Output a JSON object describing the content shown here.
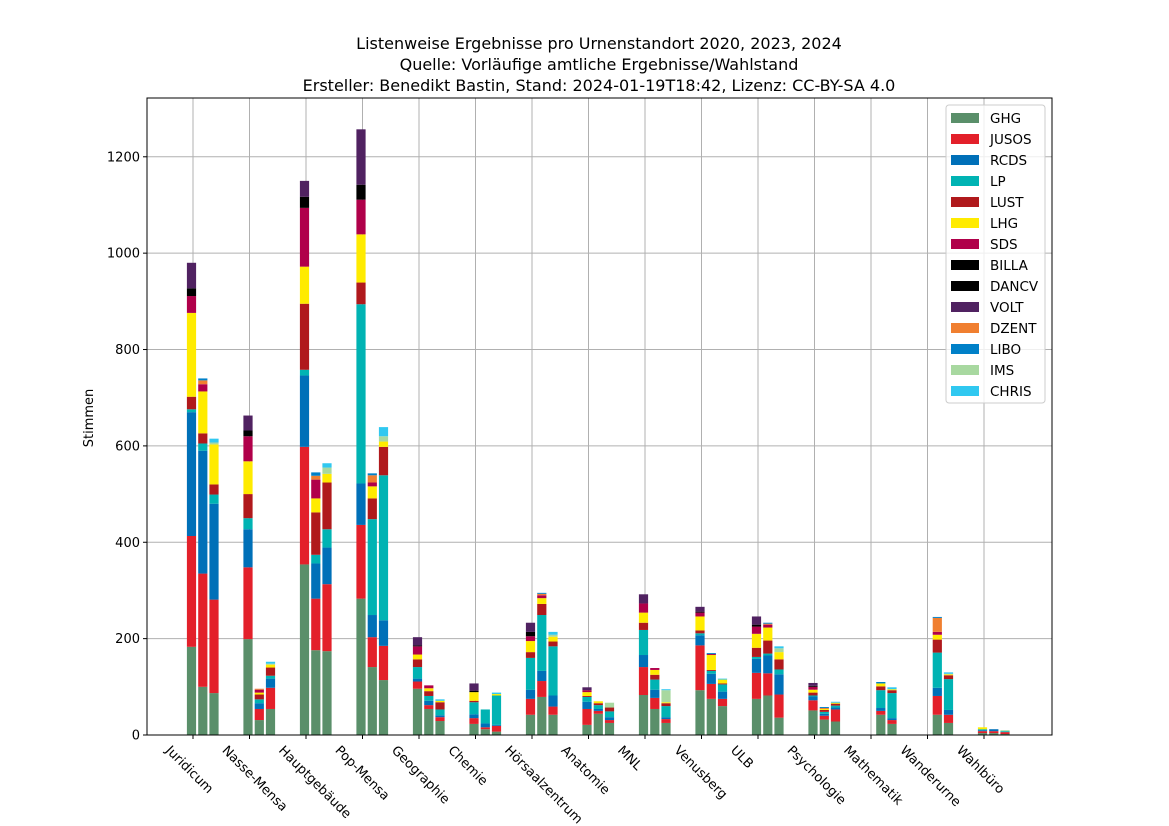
{
  "chart_data": {
    "type": "bar",
    "stacked": true,
    "title": [
      "Listenweise Ergebnisse pro Urnenstandort 2020, 2023, 2024",
      "Quelle: Vorläufige amtliche Ergebnisse/Wahlstand",
      "Ersteller: Benedikt Bastin, Stand: 2024-01-19T18:42, Lizenz: CC-BY-SA 4.0"
    ],
    "xlabel": "",
    "ylabel": "Stimmen",
    "ylim": [
      0,
      1322
    ],
    "yticks": [
      0,
      200,
      400,
      600,
      800,
      1000,
      1200
    ],
    "grid": true,
    "legend_position": "top-right",
    "categories": [
      "Juridicum",
      "Nasse-Mensa",
      "Hauptgebäude",
      "Pop-Mensa",
      "Geographie",
      "Chemie",
      "Hörsaalzentrum",
      "Anatomie",
      "MNL",
      "Venusberg",
      "ULB",
      "Psychologie",
      "Mathematik",
      "Wanderurne",
      "Wahlbüro"
    ],
    "series": [
      {
        "name": "GHG",
        "color": "#5a8f6a"
      },
      {
        "name": "JUSOS",
        "color": "#e3202a"
      },
      {
        "name": "RCDS",
        "color": "#0070b8"
      },
      {
        "name": "LP",
        "color": "#00b3b3"
      },
      {
        "name": "LUST",
        "color": "#b0191c"
      },
      {
        "name": "LHG",
        "color": "#ffeb00"
      },
      {
        "name": "SDS",
        "color": "#b0004a"
      },
      {
        "name": "BILLA",
        "color": "#000000"
      },
      {
        "name": "DANCV",
        "color": "#000000"
      },
      {
        "name": "VOLT",
        "color": "#502261"
      },
      {
        "name": "DZENT",
        "color": "#f07f30"
      },
      {
        "name": "LIBO",
        "color": "#0080c8"
      },
      {
        "name": "IMS",
        "color": "#a8d8a0"
      },
      {
        "name": "CHRIS",
        "color": "#30c8f0"
      }
    ],
    "stacks_per_category_by_year_2020_2023_2024": [
      [
        [
          183,
          230,
          257,
          6,
          26,
          174,
          35,
          16,
          0,
          53,
          0,
          0,
          0,
          0
        ],
        [
          100,
          235,
          255,
          15,
          21,
          87,
          15,
          0,
          0,
          0,
          8,
          4,
          0,
          0
        ],
        [
          87,
          194,
          199,
          19,
          21,
          83,
          0,
          0,
          0,
          0,
          0,
          0,
          4,
          8
        ]
      ],
      [
        [
          199,
          149,
          79,
          23,
          50,
          68,
          52,
          12,
          0,
          31,
          0,
          0,
          0,
          0
        ],
        [
          31,
          23,
          12,
          8,
          10,
          4,
          6,
          0,
          0,
          0,
          2,
          0,
          0,
          0
        ],
        [
          54,
          44,
          19,
          6,
          17,
          6,
          0,
          0,
          0,
          0,
          0,
          0,
          2,
          4
        ]
      ],
      [
        [
          354,
          244,
          148,
          12,
          137,
          77,
          122,
          23,
          0,
          33,
          0,
          0,
          0,
          0
        ],
        [
          176,
          107,
          73,
          18,
          88,
          29,
          39,
          0,
          0,
          0,
          8,
          7,
          0,
          0
        ],
        [
          174,
          139,
          76,
          38,
          97,
          18,
          0,
          0,
          0,
          0,
          0,
          0,
          13,
          9
        ]
      ],
      [
        [
          283,
          153,
          86,
          372,
          45,
          100,
          72,
          31,
          0,
          115,
          0,
          0,
          0,
          0
        ],
        [
          141,
          62,
          46,
          199,
          43,
          25,
          8,
          0,
          0,
          0,
          15,
          4,
          0,
          0
        ],
        [
          114,
          71,
          53,
          301,
          59,
          11,
          0,
          0,
          0,
          0,
          0,
          0,
          11,
          19
        ]
      ],
      [
        [
          96,
          15,
          6,
          24,
          16,
          10,
          17,
          2,
          0,
          17,
          0,
          0,
          0,
          0
        ],
        [
          54,
          8,
          9,
          10,
          10,
          6,
          6,
          0,
          0,
          0,
          0,
          0,
          0,
          0
        ],
        [
          29,
          8,
          4,
          12,
          15,
          3,
          0,
          0,
          0,
          0,
          0,
          0,
          0,
          3
        ]
      ],
      [
        [
          23,
          12,
          8,
          25,
          3,
          18,
          0,
          3,
          0,
          15,
          0,
          0,
          0,
          0
        ],
        [
          12,
          4,
          8,
          29,
          0,
          0,
          0,
          0,
          0,
          0,
          0,
          0,
          0,
          0
        ],
        [
          7,
          12,
          2,
          61,
          0,
          3,
          0,
          0,
          0,
          0,
          0,
          0,
          0,
          3
        ]
      ],
      [
        [
          42,
          33,
          19,
          66,
          12,
          23,
          10,
          9,
          0,
          19,
          0,
          0,
          0,
          0
        ],
        [
          79,
          33,
          21,
          116,
          23,
          12,
          6,
          0,
          0,
          0,
          3,
          2,
          0,
          0
        ],
        [
          42,
          17,
          23,
          102,
          10,
          10,
          0,
          0,
          0,
          0,
          0,
          0,
          4,
          6
        ]
      ],
      [
        [
          21,
          33,
          15,
          10,
          2,
          8,
          4,
          0,
          0,
          6,
          0,
          0,
          0,
          0
        ],
        [
          44,
          6,
          4,
          8,
          4,
          4,
          0,
          0,
          0,
          0,
          0,
          0,
          0,
          0
        ],
        [
          25,
          6,
          6,
          12,
          8,
          0,
          0,
          0,
          0,
          0,
          0,
          0,
          10,
          0
        ]
      ],
      [
        [
          83,
          58,
          25,
          52,
          15,
          21,
          19,
          0,
          0,
          19,
          0,
          0,
          0,
          0
        ],
        [
          54,
          23,
          17,
          21,
          10,
          10,
          4,
          0,
          0,
          0,
          0,
          0,
          0,
          0
        ],
        [
          25,
          8,
          4,
          23,
          6,
          2,
          0,
          0,
          0,
          0,
          0,
          0,
          25,
          2
        ]
      ],
      [
        [
          93,
          93,
          21,
          4,
          6,
          29,
          8,
          2,
          0,
          10,
          0,
          0,
          0,
          0
        ],
        [
          75,
          31,
          21,
          6,
          2,
          31,
          2,
          0,
          0,
          0,
          0,
          2,
          0,
          0
        ],
        [
          60,
          15,
          15,
          15,
          2,
          8,
          0,
          0,
          0,
          0,
          0,
          0,
          0,
          2
        ]
      ],
      [
        [
          75,
          54,
          29,
          4,
          19,
          29,
          15,
          4,
          0,
          17,
          0,
          0,
          0,
          0
        ],
        [
          82,
          46,
          37,
          4,
          27,
          27,
          6,
          0,
          0,
          0,
          2,
          2,
          0,
          0
        ],
        [
          36,
          48,
          42,
          10,
          21,
          15,
          0,
          0,
          0,
          0,
          0,
          0,
          8,
          4
        ]
      ],
      [
        [
          51,
          21,
          8,
          2,
          6,
          6,
          6,
          2,
          0,
          6,
          0,
          0,
          0,
          0
        ],
        [
          32,
          8,
          4,
          4,
          4,
          2,
          0,
          0,
          0,
          0,
          2,
          2,
          0,
          0
        ],
        [
          28,
          25,
          4,
          4,
          4,
          2,
          0,
          0,
          0,
          0,
          0,
          0,
          0,
          2
        ]
      ],
      [
        [
          0,
          0,
          0,
          0,
          0,
          0,
          0,
          0,
          0,
          0,
          0,
          0,
          0,
          0
        ],
        [
          42,
          8,
          6,
          37,
          8,
          6,
          0,
          0,
          0,
          0,
          0,
          3,
          0,
          0
        ],
        [
          23,
          8,
          4,
          52,
          6,
          2,
          0,
          0,
          0,
          0,
          0,
          0,
          0,
          4
        ]
      ],
      [
        [
          0,
          0,
          0,
          0,
          0,
          0,
          0,
          0,
          0,
          0,
          0,
          0,
          0,
          0
        ],
        [
          42,
          39,
          17,
          73,
          27,
          10,
          6,
          0,
          0,
          0,
          29,
          2,
          0,
          0
        ],
        [
          25,
          17,
          10,
          64,
          8,
          2,
          0,
          0,
          0,
          0,
          0,
          0,
          1,
          3
        ]
      ],
      [
        [
          4,
          4,
          2,
          2,
          0,
          4,
          0,
          0,
          0,
          0,
          0,
          0,
          0,
          0
        ],
        [
          4,
          4,
          4,
          0,
          0,
          0,
          0,
          0,
          0,
          0,
          0,
          0,
          0,
          0
        ],
        [
          2,
          4,
          0,
          2,
          0,
          0,
          0,
          0,
          0,
          0,
          0,
          0,
          2,
          0
        ]
      ]
    ]
  }
}
